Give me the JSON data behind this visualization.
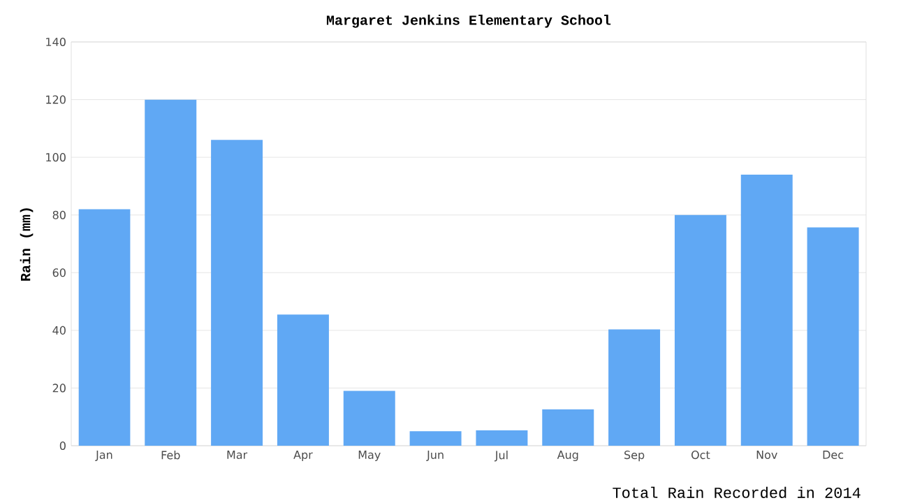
{
  "chart_data": {
    "type": "bar",
    "title": "Margaret Jenkins Elementary School",
    "xlabel": "Total Rain Recorded in 2014",
    "ylabel": "Rain (mm)",
    "categories": [
      "Jan",
      "Feb",
      "Mar",
      "Apr",
      "May",
      "Jun",
      "Jul",
      "Aug",
      "Sep",
      "Oct",
      "Nov",
      "Dec"
    ],
    "values": [
      82,
      120,
      106,
      45.5,
      19,
      5,
      5.3,
      12.6,
      40.3,
      80,
      94,
      75.7
    ],
    "color": "#60a8f4",
    "ylim": [
      0,
      140
    ],
    "yticks": [
      0,
      20,
      40,
      60,
      80,
      100,
      120,
      140
    ],
    "grid": "y"
  }
}
